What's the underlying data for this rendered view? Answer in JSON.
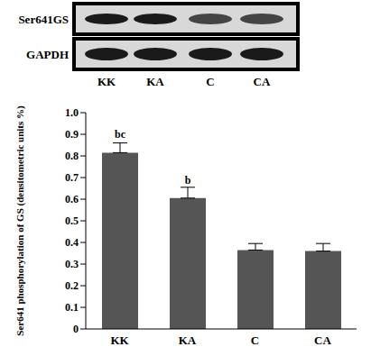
{
  "blot": {
    "rows": [
      "Ser641GS",
      "GAPDH"
    ],
    "lanes": [
      "KK",
      "KA",
      "C",
      "CA"
    ]
  },
  "chart_data": {
    "type": "bar",
    "categories": [
      "KK",
      "KA",
      "C",
      "CA"
    ],
    "values": [
      0.815,
      0.605,
      0.365,
      0.36
    ],
    "errors": [
      0.045,
      0.05,
      0.03,
      0.035
    ],
    "annotations": [
      "bc",
      "b",
      null,
      null
    ],
    "color": "#555555",
    "ylabel": "Ser641 phosphorylation of GS (densitometric units %)",
    "ylim": [
      0,
      1
    ],
    "yticks": [
      0,
      0.1,
      0.2,
      0.3,
      0.4,
      0.5,
      0.6,
      0.7,
      0.8,
      0.9,
      {
        "value": 1,
        "label": "1.0"
      }
    ]
  }
}
